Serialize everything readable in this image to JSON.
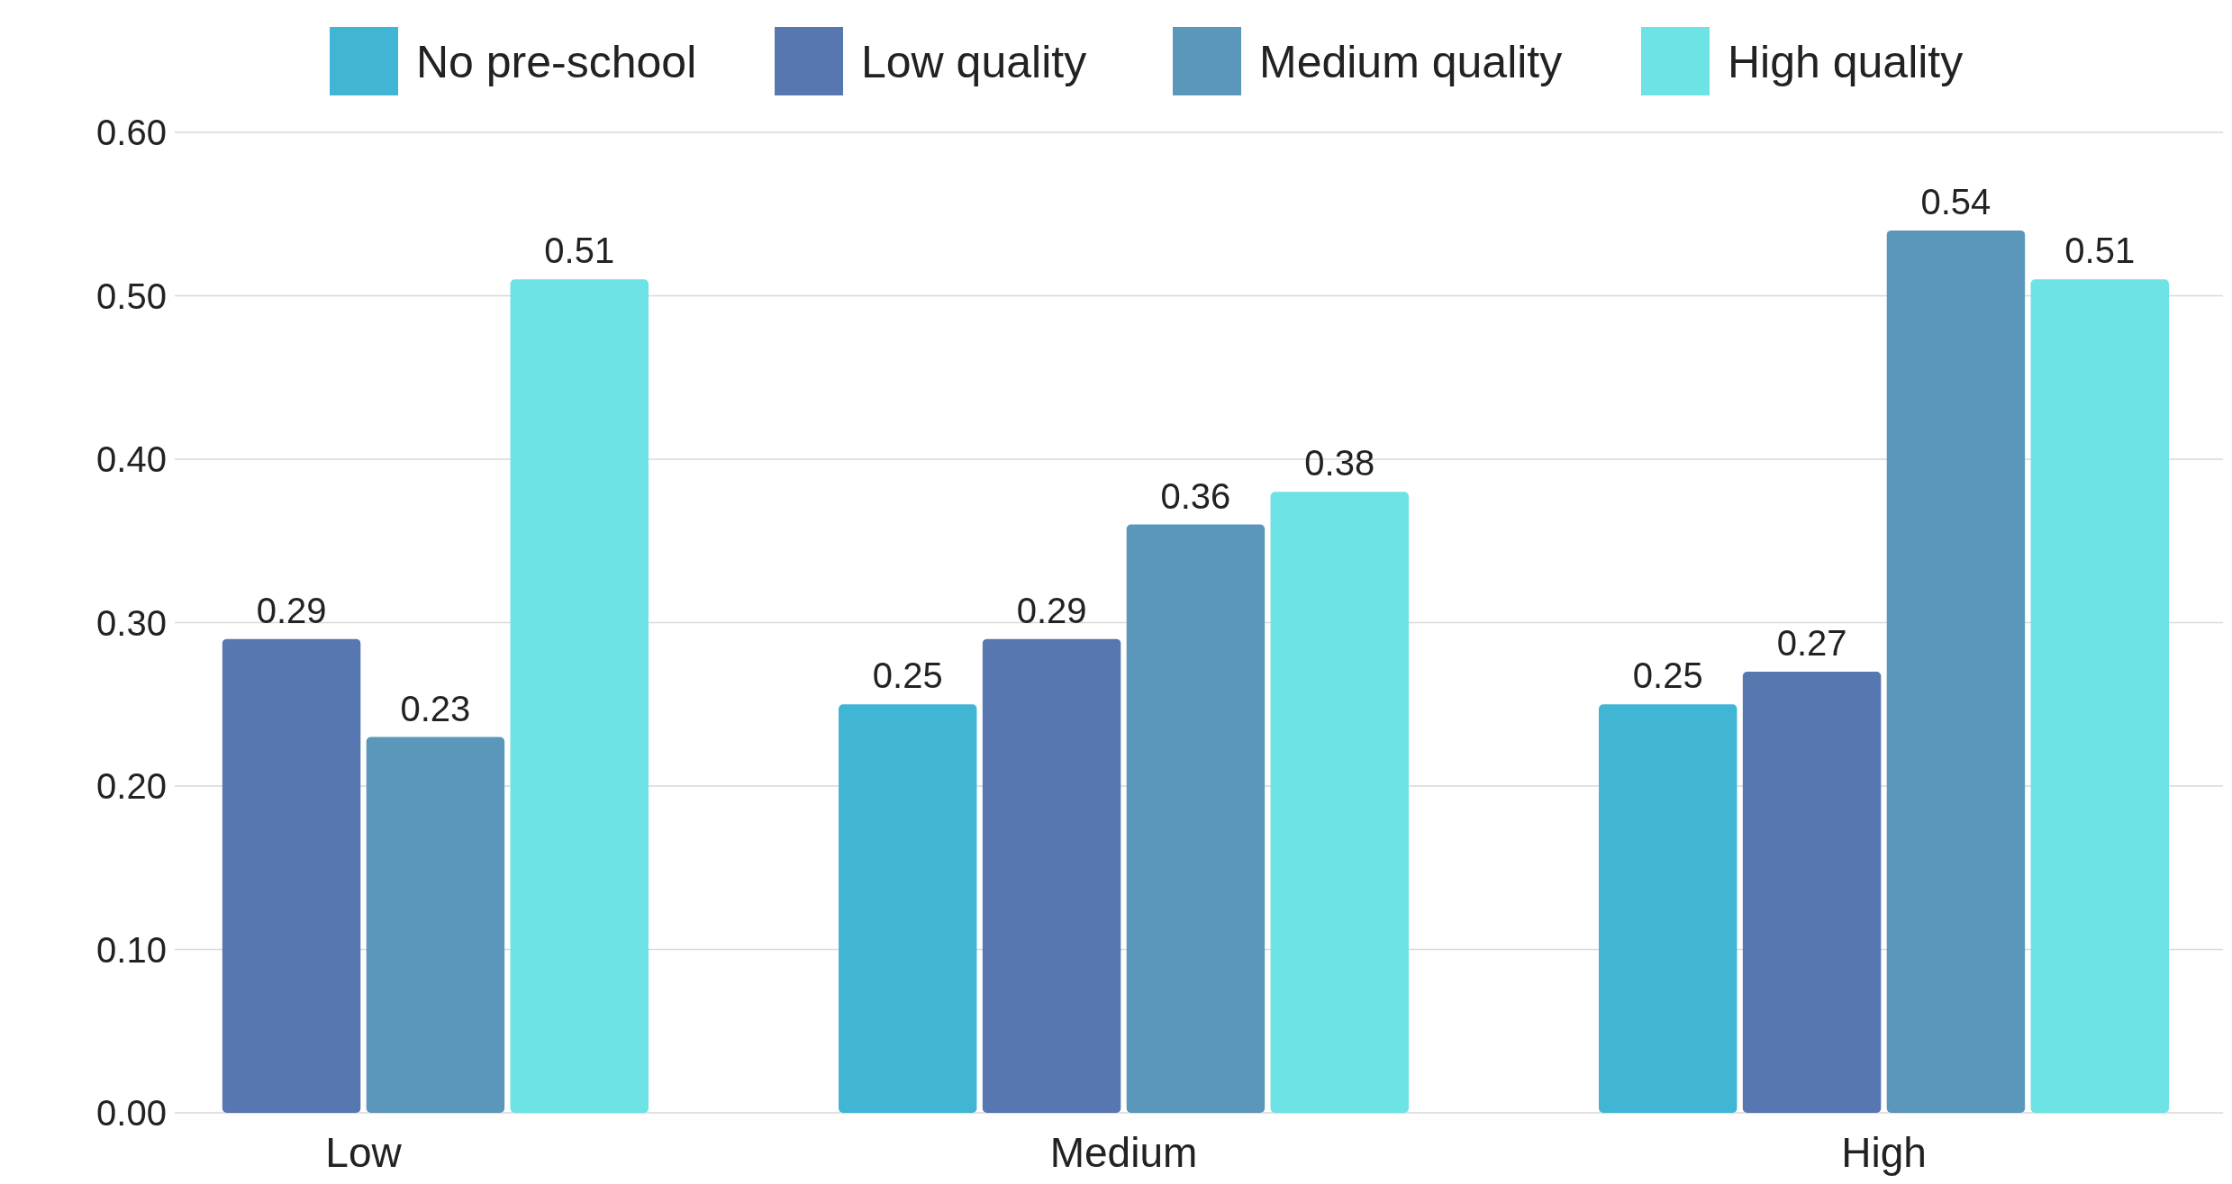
{
  "chart_data": {
    "type": "bar",
    "categories": [
      "Low",
      "Medium",
      "High"
    ],
    "series": [
      {
        "name": "No pre-school",
        "color": "#41b6d4",
        "values": [
          null,
          0.25,
          0.25
        ]
      },
      {
        "name": "Low quality",
        "color": "#5777b0",
        "values": [
          0.29,
          0.29,
          0.27
        ]
      },
      {
        "name": "Medium quality",
        "color": "#5b97bb",
        "values": [
          0.23,
          0.36,
          0.54
        ]
      },
      {
        "name": "High quality",
        "color": "#6ee3e6",
        "values": [
          0.51,
          0.38,
          0.51
        ]
      }
    ],
    "ylim": [
      0,
      0.6
    ],
    "yticks": [
      {
        "value": 0,
        "label": "0.00"
      },
      {
        "value": 0.1,
        "label": "0.10"
      },
      {
        "value": 0.2,
        "label": "0.20"
      },
      {
        "value": 0.3,
        "label": "0.30"
      },
      {
        "value": 0.4,
        "label": "0.40"
      },
      {
        "value": 0.5,
        "label": "0.50"
      },
      {
        "value": 0.6,
        "label": "0.60"
      }
    ],
    "grid": "y",
    "legend": "top",
    "data_labels": true
  }
}
